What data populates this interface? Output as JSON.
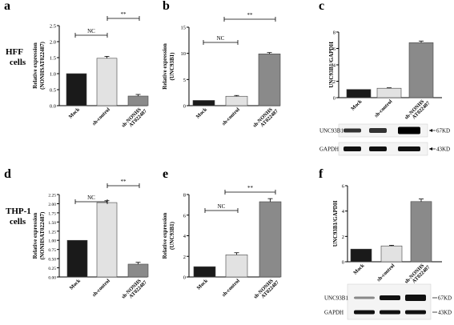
{
  "panels": [
    {
      "letter": "a",
      "row_label": [
        "HFF",
        "cells"
      ],
      "ylabel": [
        "Relative expression",
        "(NONHSAT022487)"
      ],
      "yticks": [
        "0.0",
        "0.5",
        "1.0",
        "1.5",
        "2.0",
        "2.5"
      ],
      "sig": [
        {
          "label": "NC"
        },
        {
          "label": "**"
        }
      ]
    },
    {
      "letter": "b",
      "ylabel": [
        "Relative expression",
        "(UNC93B1)"
      ],
      "yticks": [
        "0",
        "5",
        "10",
        "15"
      ],
      "sig": [
        {
          "label": "NC"
        },
        {
          "label": "**"
        }
      ]
    },
    {
      "letter": "c",
      "ylabel": [
        "UNC93B1/GAPDH"
      ],
      "yticks": [
        "0",
        "2",
        "4",
        "6",
        "8"
      ],
      "blot": {
        "rows": [
          "UNC93B1",
          "GAPDH"
        ],
        "sizes": [
          "67KD",
          "43KD"
        ]
      }
    },
    {
      "letter": "d",
      "row_label": [
        "THP-1",
        "cells"
      ],
      "ylabel": [
        "Relative expression",
        "(NONHSAT022487)"
      ],
      "yticks": [
        "0.00",
        "0.25",
        "0.50",
        "0.75",
        "1.00",
        "1.25",
        "1.50",
        "1.75",
        "2.00",
        "2.25"
      ],
      "sig": [
        {
          "label": "NC"
        },
        {
          "label": "**"
        }
      ]
    },
    {
      "letter": "e",
      "ylabel": [
        "Relative expression",
        "(UNC93B1)"
      ],
      "yticks": [
        "0",
        "2",
        "4",
        "6",
        "8"
      ],
      "sig": [
        {
          "label": "NC"
        },
        {
          "label": "**"
        }
      ]
    },
    {
      "letter": "f",
      "ylabel": [
        "UNC93B1/GAPDH"
      ],
      "yticks": [
        "0",
        "2",
        "4",
        "6"
      ],
      "blot": {
        "rows": [
          "UNC93B1",
          "GAPDH"
        ],
        "sizes": [
          "67KD",
          "43KD"
        ]
      }
    }
  ],
  "colors": {
    "mock": "#1a1a1a",
    "control": "#e2e2e2",
    "sh": "#8a8a8a"
  },
  "chart_data": [
    {
      "type": "bar",
      "panel": "a",
      "categories": [
        "Mock",
        "sh-control",
        "sh-NONHS AT022487"
      ],
      "values": [
        1.0,
        1.48,
        0.3
      ],
      "errors": [
        0,
        0.06,
        0.05
      ],
      "ylim": [
        0,
        2.5
      ],
      "ylabel": "Relative expression (NONHSAT022487)"
    },
    {
      "type": "bar",
      "panel": "b",
      "categories": [
        "Mock",
        "sh-control",
        "sh-NONHS AT022487"
      ],
      "values": [
        1.0,
        1.8,
        9.9
      ],
      "errors": [
        0,
        0.15,
        0.25
      ],
      "ylim": [
        0,
        15
      ],
      "ylabel": "Relative expression (UNC93B1)"
    },
    {
      "type": "bar",
      "panel": "c",
      "categories": [
        "Mock",
        "sh-control",
        "sh-NONHS AT022487"
      ],
      "values": [
        1.0,
        1.15,
        6.7
      ],
      "errors": [
        0,
        0.05,
        0.2
      ],
      "ylim": [
        0,
        8
      ],
      "ylabel": "UNC93B1/GAPDH"
    },
    {
      "type": "bar",
      "panel": "d",
      "categories": [
        "Mock",
        "sh-control",
        "sh-NONHS AT022487"
      ],
      "values": [
        1.0,
        2.03,
        0.35
      ],
      "errors": [
        0,
        0.05,
        0.05
      ],
      "ylim": [
        0,
        2.25
      ],
      "ylabel": "Relative expression (NONHSAT022487)"
    },
    {
      "type": "bar",
      "panel": "e",
      "categories": [
        "Mock",
        "sh-control",
        "sh-NONHS AT022487"
      ],
      "values": [
        1.0,
        2.15,
        7.3
      ],
      "errors": [
        0,
        0.2,
        0.3
      ],
      "ylim": [
        0,
        8
      ],
      "ylabel": "Relative expression (UNC93B1)"
    },
    {
      "type": "bar",
      "panel": "f",
      "categories": [
        "Mock",
        "sh-control",
        "sh-NONHS AT022487"
      ],
      "values": [
        1.0,
        1.25,
        4.75
      ],
      "errors": [
        0,
        0.05,
        0.2
      ],
      "ylim": [
        0,
        6
      ],
      "ylabel": "UNC93B1/GAPDH"
    }
  ]
}
